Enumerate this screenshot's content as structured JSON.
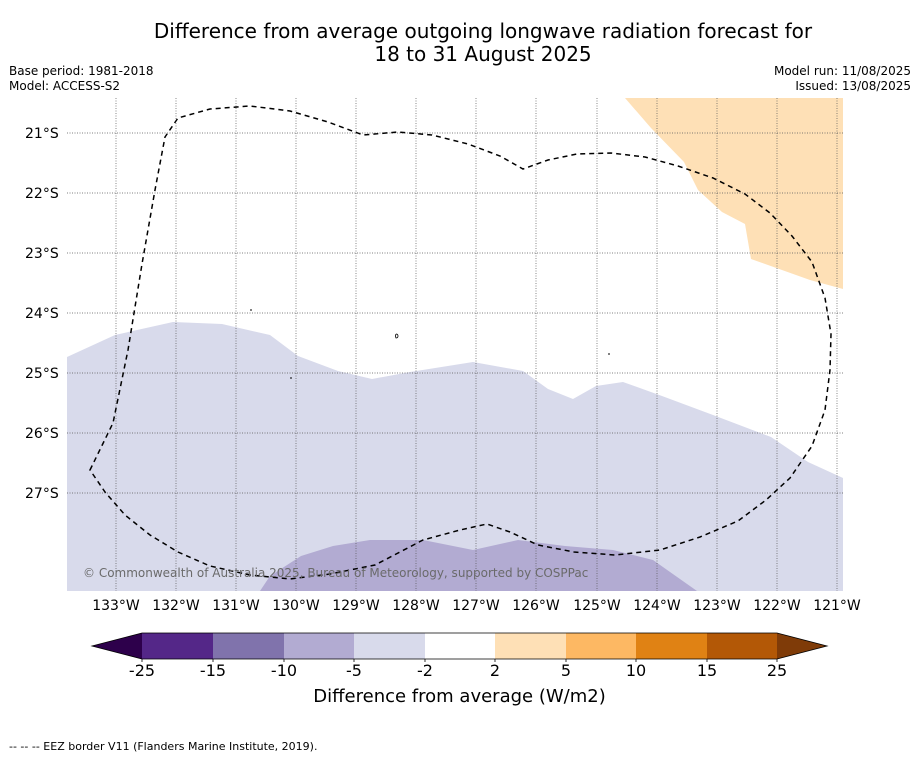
{
  "title_line1": "Difference from average outgoing longwave radiation forecast for",
  "title_line2": "18 to 31 August 2025",
  "base_period": "Base period: 1981-2018",
  "model": "Model: ACCESS-S2",
  "model_run": "Model run: 11/08/2025",
  "issued": "Issued: 13/08/2025",
  "copyright": "© Commonwealth of Australia 2025, Bureau of Meteorology, supported by COSPPac",
  "latitude_labels": [
    "21°S",
    "22°S",
    "23°S",
    "24°S",
    "25°S",
    "26°S",
    "27°S"
  ],
  "longitude_labels": [
    "133°W",
    "132°W",
    "131°W",
    "130°W",
    "129°W",
    "128°W",
    "127°W",
    "126°W",
    "125°W",
    "124°W",
    "123°W",
    "122°W",
    "121°W"
  ],
  "colorbar": {
    "ticks": [
      "-25",
      "-15",
      "-10",
      "-5",
      "-2",
      "2",
      "5",
      "10",
      "15",
      "25"
    ],
    "label": "Difference from average (W/m2)",
    "under_color": "#2d004b",
    "over_color": "#7f3b08",
    "colors": [
      "#542788",
      "#8073ac",
      "#b2abd2",
      "#d8daeb",
      "#ffffff",
      "#fee0b6",
      "#fdb863",
      "#e08214",
      "#b35806"
    ]
  },
  "footnote": "--  --  -- EEZ border V11 (Flanders Marine Institute, 2019)."
}
